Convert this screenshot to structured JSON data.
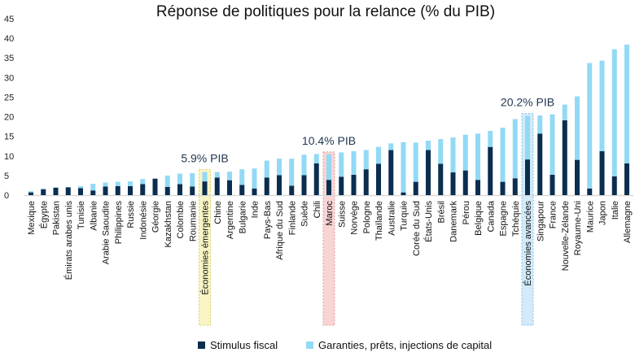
{
  "chart_data": {
    "type": "bar",
    "stacked": true,
    "title": "Réponse de politiques pour la relance (% du PIB)",
    "ylim": [
      0,
      45
    ],
    "yticks": [
      0,
      5,
      10,
      15,
      20,
      25,
      30,
      35,
      40,
      45
    ],
    "grid": false,
    "legend_position": "bottom",
    "categories": [
      "Mexique",
      "Égypte",
      "Pakistan",
      "Émirats arabes unis",
      "Tunisie",
      "Albanie",
      "Arabie Saoudite",
      "Philippines",
      "Russie",
      "Indonésie",
      "Géorgie",
      "Kazakhstan",
      "Colombie",
      "Roumanie",
      "Économies émergentes",
      "Chine",
      "Argentine",
      "Bulgarie",
      "Inde",
      "Pays-Bas",
      "Afrique du Sud",
      "Finlande",
      "Suède",
      "Chili",
      "Maroc",
      "Suisse",
      "Norvège",
      "Pologne",
      "Thaïlande",
      "Australie",
      "Turquie",
      "Corée du Sud",
      "États-Unis",
      "Brésil",
      "Danemark",
      "Pérou",
      "Belgique",
      "Canada",
      "Espagne",
      "Tchéquie",
      "Économies avancées",
      "Singapour",
      "France",
      "Nouvelle-Zélande",
      "Royaume-Uni",
      "Maurice",
      "Japon",
      "Italie",
      "Allemagne"
    ],
    "series": [
      {
        "name": "Stimulus fiscal",
        "color": "#0b2e4f",
        "values": [
          0.7,
          1.5,
          1.9,
          2.0,
          1.8,
          1.2,
          2.2,
          2.3,
          2.3,
          2.8,
          4.2,
          2.1,
          2.8,
          2.2,
          3.5,
          4.5,
          3.8,
          2.6,
          1.7,
          4.5,
          5.1,
          2.4,
          5.1,
          8.1,
          3.9,
          4.7,
          5.2,
          6.6,
          8.0,
          11.5,
          0.7,
          3.4,
          11.5,
          8.0,
          5.8,
          6.3,
          3.9,
          12.3,
          3.4,
          4.3,
          9.1,
          15.7,
          5.2,
          19.1,
          9.0,
          1.7,
          11.2,
          4.8,
          8.1
        ]
      },
      {
        "name": "Garanties, prêts, injections de capital",
        "color": "#92d9f5",
        "values": [
          0.3,
          0.2,
          0.1,
          0.1,
          0.5,
          1.7,
          1.0,
          1.1,
          1.2,
          1.3,
          0.0,
          2.9,
          2.7,
          3.4,
          2.4,
          1.4,
          2.2,
          4.0,
          5.1,
          4.3,
          4.2,
          6.9,
          5.2,
          2.4,
          6.5,
          6.2,
          6.0,
          4.9,
          4.3,
          1.7,
          12.8,
          10.0,
          2.4,
          6.3,
          8.9,
          9.1,
          11.8,
          4.1,
          13.8,
          15.1,
          11.1,
          4.6,
          15.4,
          4.0,
          16.2,
          32.0,
          23.1,
          32.4,
          30.3
        ]
      }
    ],
    "annotations": [
      {
        "category": "Économies émergentes",
        "text": "5.9% PIB",
        "highlight": "#f5f0b0"
      },
      {
        "category": "Maroc",
        "text": "10.4% PIB",
        "highlight": "#f6c6c6"
      },
      {
        "category": "Économies avancées",
        "text": "20.2% PIB",
        "highlight": "#c4e4f6"
      }
    ]
  }
}
